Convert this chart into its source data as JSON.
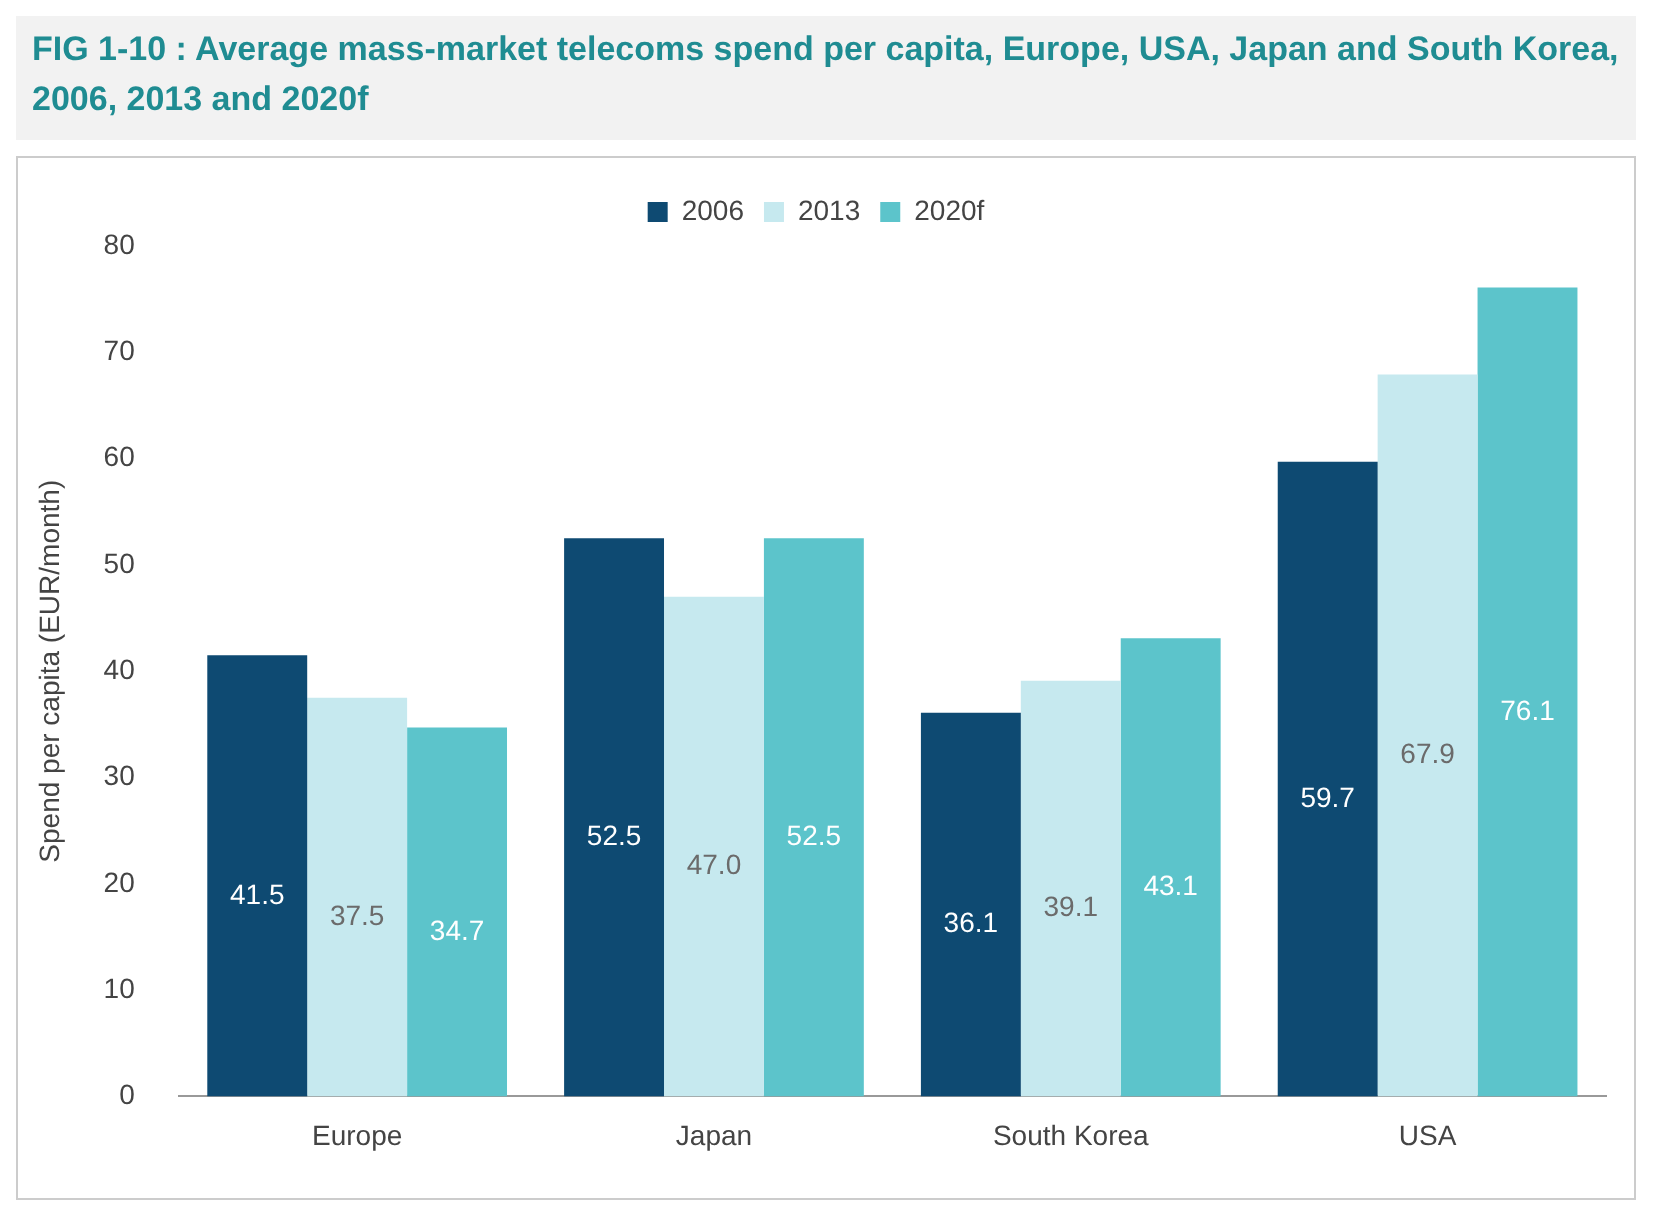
{
  "chart_data": {
    "type": "bar",
    "title": "FIG 1-10 : Average mass-market telecoms spend per capita, Europe, USA, Japan and South Korea, 2006, 2013 and 2020f",
    "ylabel": "Spend per capita (EUR/month)",
    "categories": [
      "Europe",
      "Japan",
      "South Korea",
      "USA"
    ],
    "series": [
      {
        "name": "2006",
        "color": "#0e4a72",
        "values": [
          41.5,
          52.5,
          36.1,
          59.7
        ],
        "value_labels": [
          "41.5",
          "52.5",
          "36.1",
          "59.7"
        ]
      },
      {
        "name": "2013",
        "color": "#c6e9ef",
        "values": [
          37.5,
          47.0,
          39.1,
          67.9
        ],
        "value_labels": [
          "37.5",
          "47.0",
          "39.1",
          "67.9"
        ]
      },
      {
        "name": "2020f",
        "color": "#5cc4cb",
        "values": [
          34.7,
          52.5,
          43.1,
          76.1
        ],
        "value_labels": [
          "34.7",
          "52.5",
          "43.1",
          "76.1"
        ]
      }
    ],
    "ylim": [
      0,
      80
    ],
    "yticks": [
      0,
      10,
      20,
      30,
      40,
      50,
      60,
      70,
      80
    ],
    "grid": false,
    "legend": "top"
  }
}
